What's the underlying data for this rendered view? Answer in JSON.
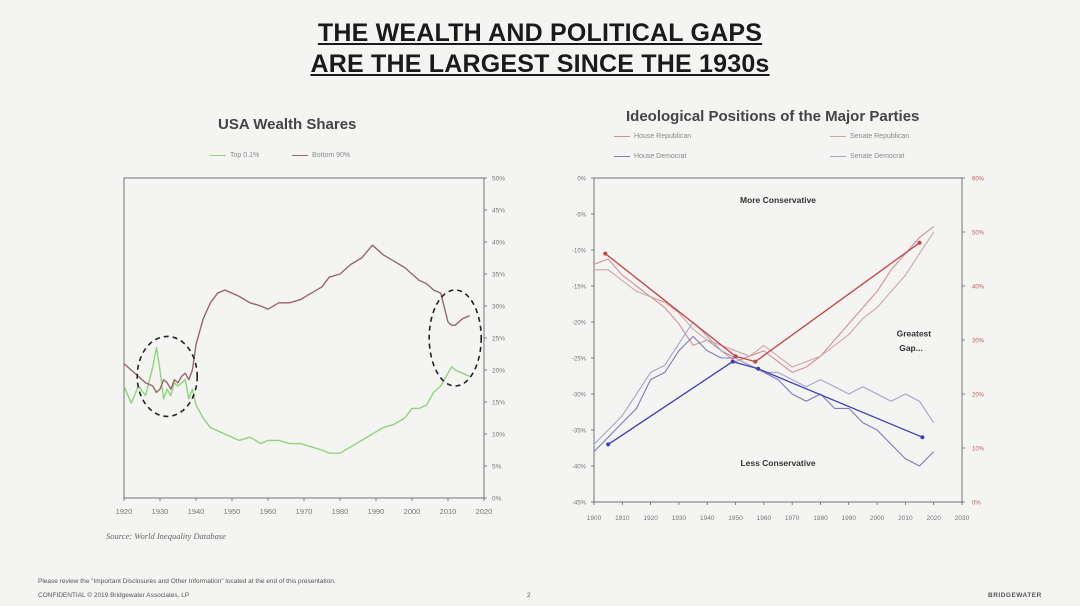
{
  "title": {
    "line1": "THE WEALTH AND POLITICAL GAPS",
    "line2": "ARE THE LARGEST SINCE THE 1930s"
  },
  "colors": {
    "wealth_top": "#8fd47a",
    "wealth_bottom": "#9b6669",
    "house_rep": "#d49090",
    "senate_rep": "#d4a4a4",
    "house_dem": "#7c7cc0",
    "senate_dem": "#a4a4cc",
    "trend_rep": "#c94040",
    "trend_dem": "#3d3dc0",
    "annotation": "#222222"
  },
  "source": "Source: World Inequality Database",
  "footer": {
    "disclaimer": "Please review the \"Important Disclosures and Other Information\" located at the end of this presentation.",
    "confidential": "CONFIDENTIAL © 2019 Bridgewater Associates, LP",
    "page": "2",
    "brand": "BRIDGEWATER"
  },
  "chart_data": [
    {
      "type": "line",
      "title": "USA Wealth Shares",
      "xlabel": "",
      "ylabel": "",
      "xlim": [
        1920,
        2020
      ],
      "ylim": [
        0,
        50
      ],
      "x_ticks": [
        "1920",
        "1930",
        "1940",
        "1950",
        "1960",
        "1970",
        "1980",
        "1990",
        "2000",
        "2010",
        "2020"
      ],
      "y_ticks": [
        "0%",
        "5%",
        "10%",
        "15%",
        "20%",
        "25%",
        "30%",
        "35%",
        "40%",
        "45%",
        "50%"
      ],
      "y_axis_side": "right",
      "grid": false,
      "legend_position": "top-center",
      "series": [
        {
          "name": "Top 0.1%",
          "x": [
            1920,
            1922,
            1924,
            1926,
            1928,
            1929,
            1930,
            1931,
            1932,
            1933,
            1934,
            1935,
            1936,
            1937,
            1938,
            1939,
            1940,
            1942,
            1944,
            1946,
            1948,
            1950,
            1952,
            1955,
            1958,
            1960,
            1963,
            1966,
            1969,
            1972,
            1975,
            1977,
            1980,
            1983,
            1986,
            1989,
            1992,
            1995,
            1998,
            2000,
            2002,
            2004,
            2006,
            2008,
            2010,
            2011,
            2012,
            2014,
            2016
          ],
          "values": [
            17.5,
            14.8,
            17.5,
            16.0,
            20.5,
            23.5,
            20.0,
            15.5,
            17.0,
            16.0,
            18.0,
            17.5,
            18.0,
            18.5,
            15.5,
            17.0,
            14.5,
            12.5,
            11.0,
            10.5,
            10.0,
            9.5,
            9.0,
            9.5,
            8.5,
            9.0,
            9.0,
            8.5,
            8.5,
            8.0,
            7.5,
            7.0,
            7.0,
            8.0,
            9.0,
            10.0,
            11.0,
            11.5,
            12.5,
            14.0,
            14.0,
            14.5,
            16.5,
            17.5,
            19.5,
            20.5,
            20.0,
            19.5,
            19.0
          ]
        },
        {
          "name": "Bottom 90%",
          "x": [
            1920,
            1922,
            1924,
            1926,
            1928,
            1929,
            1930,
            1931,
            1932,
            1933,
            1934,
            1935,
            1936,
            1937,
            1938,
            1939,
            1940,
            1942,
            1944,
            1946,
            1948,
            1950,
            1952,
            1955,
            1958,
            1960,
            1963,
            1966,
            1969,
            1972,
            1975,
            1977,
            1980,
            1983,
            1986,
            1989,
            1992,
            1995,
            1998,
            2000,
            2002,
            2004,
            2006,
            2008,
            2010,
            2011,
            2012,
            2014,
            2016
          ],
          "values": [
            21.0,
            20.0,
            19.0,
            18.0,
            17.5,
            16.5,
            17.0,
            18.5,
            18.0,
            17.0,
            18.5,
            18.0,
            19.0,
            19.5,
            18.5,
            20.0,
            24.0,
            28.0,
            30.5,
            32.0,
            32.5,
            32.0,
            31.5,
            30.5,
            30.0,
            29.5,
            30.5,
            30.5,
            31.0,
            32.0,
            33.0,
            34.5,
            35.0,
            36.5,
            37.5,
            39.5,
            38.0,
            37.0,
            36.0,
            35.0,
            34.0,
            33.5,
            32.5,
            32.0,
            27.5,
            27.0,
            27.0,
            28.0,
            28.5
          ]
        }
      ],
      "annotations": [
        {
          "type": "dashed-circle",
          "x": 1932,
          "y": 19
        },
        {
          "type": "dashed-circle",
          "x": 2012,
          "y": 25
        }
      ]
    },
    {
      "type": "line",
      "title": "Ideological Positions of the Major Parties",
      "xlabel": "",
      "ylabel": "",
      "xlim": [
        1900,
        2030
      ],
      "x_ticks": [
        "1900",
        "1910",
        "1920",
        "1930",
        "1940",
        "1950",
        "1960",
        "1970",
        "1980",
        "1990",
        "2000",
        "2010",
        "2020",
        "2030"
      ],
      "left_axis": {
        "ylim": [
          -45,
          0
        ],
        "ticks": [
          "0%",
          "-5%",
          "-10%",
          "-15%",
          "-20%",
          "-25%",
          "-30%",
          "-35%",
          "-40%",
          "-45%"
        ]
      },
      "right_axis": {
        "ylim": [
          0,
          60
        ],
        "ticks": [
          "0%",
          "10%",
          "20%",
          "30%",
          "40%",
          "50%",
          "60%"
        ]
      },
      "grid": false,
      "legend_position": "top",
      "series": [
        {
          "name": "House Republican",
          "axis": "right",
          "x": [
            1900,
            1905,
            1910,
            1915,
            1920,
            1925,
            1930,
            1935,
            1940,
            1945,
            1950,
            1955,
            1960,
            1965,
            1970,
            1975,
            1980,
            1985,
            1990,
            1995,
            2000,
            2005,
            2010,
            2015,
            2020
          ],
          "values": [
            44,
            45,
            42,
            40,
            38,
            36,
            33,
            29,
            30,
            28,
            26,
            27,
            28,
            26,
            24,
            25,
            27,
            30,
            33,
            36,
            39,
            43,
            46,
            49,
            51
          ]
        },
        {
          "name": "Senate Republican",
          "axis": "right",
          "x": [
            1900,
            1905,
            1910,
            1915,
            1920,
            1925,
            1930,
            1935,
            1940,
            1945,
            1950,
            1955,
            1960,
            1965,
            1970,
            1975,
            1980,
            1985,
            1990,
            1995,
            2000,
            2005,
            2010,
            2015,
            2020
          ],
          "values": [
            43,
            43,
            41,
            39,
            38,
            37,
            35,
            32,
            30,
            29,
            28,
            27,
            29,
            27,
            25,
            26,
            27,
            29,
            31,
            34,
            36,
            39,
            42,
            46,
            50
          ]
        },
        {
          "name": "House Democrat",
          "axis": "left",
          "x": [
            1900,
            1905,
            1910,
            1915,
            1920,
            1925,
            1930,
            1935,
            1940,
            1945,
            1950,
            1955,
            1960,
            1965,
            1970,
            1975,
            1980,
            1985,
            1990,
            1995,
            2000,
            2005,
            2010,
            2015,
            2020
          ],
          "values": [
            -38,
            -36,
            -34,
            -32,
            -28,
            -27,
            -24,
            -22,
            -24,
            -25,
            -25,
            -26,
            -27,
            -28,
            -30,
            -31,
            -30,
            -32,
            -32,
            -34,
            -35,
            -37,
            -39,
            -40,
            -38
          ]
        },
        {
          "name": "Senate Democrat",
          "axis": "left",
          "x": [
            1900,
            1905,
            1910,
            1915,
            1920,
            1925,
            1930,
            1935,
            1940,
            1945,
            1950,
            1955,
            1960,
            1965,
            1970,
            1975,
            1980,
            1985,
            1990,
            1995,
            2000,
            2005,
            2010,
            2015,
            2020
          ],
          "values": [
            -37,
            -35,
            -33,
            -30,
            -27,
            -26,
            -23,
            -20,
            -22,
            -24,
            -25,
            -26,
            -27,
            -27,
            -28,
            -29,
            -28,
            -29,
            -30,
            -29,
            -30,
            -31,
            -30,
            -31,
            -34
          ]
        },
        {
          "name": "",
          "axis": "right",
          "x": [
            1904,
            1950,
            1957,
            2015
          ],
          "values": [
            46,
            27,
            26,
            48
          ]
        },
        {
          "name": "",
          "axis": "left",
          "x": [
            1905,
            1949,
            1958,
            2016
          ],
          "values": [
            -37,
            -25.5,
            -26.5,
            -36
          ]
        }
      ],
      "annotations": [
        {
          "text": "More Conservative",
          "x": 1965,
          "y": -3.5,
          "axis": "left"
        },
        {
          "text": "Less Conservative",
          "x": 1965,
          "y": -40,
          "axis": "left"
        },
        {
          "text": "Greatest",
          "x": 2013,
          "y": -22,
          "axis": "left"
        },
        {
          "text": "Gap...",
          "x": 2012,
          "y": -24,
          "axis": "left"
        }
      ]
    }
  ]
}
